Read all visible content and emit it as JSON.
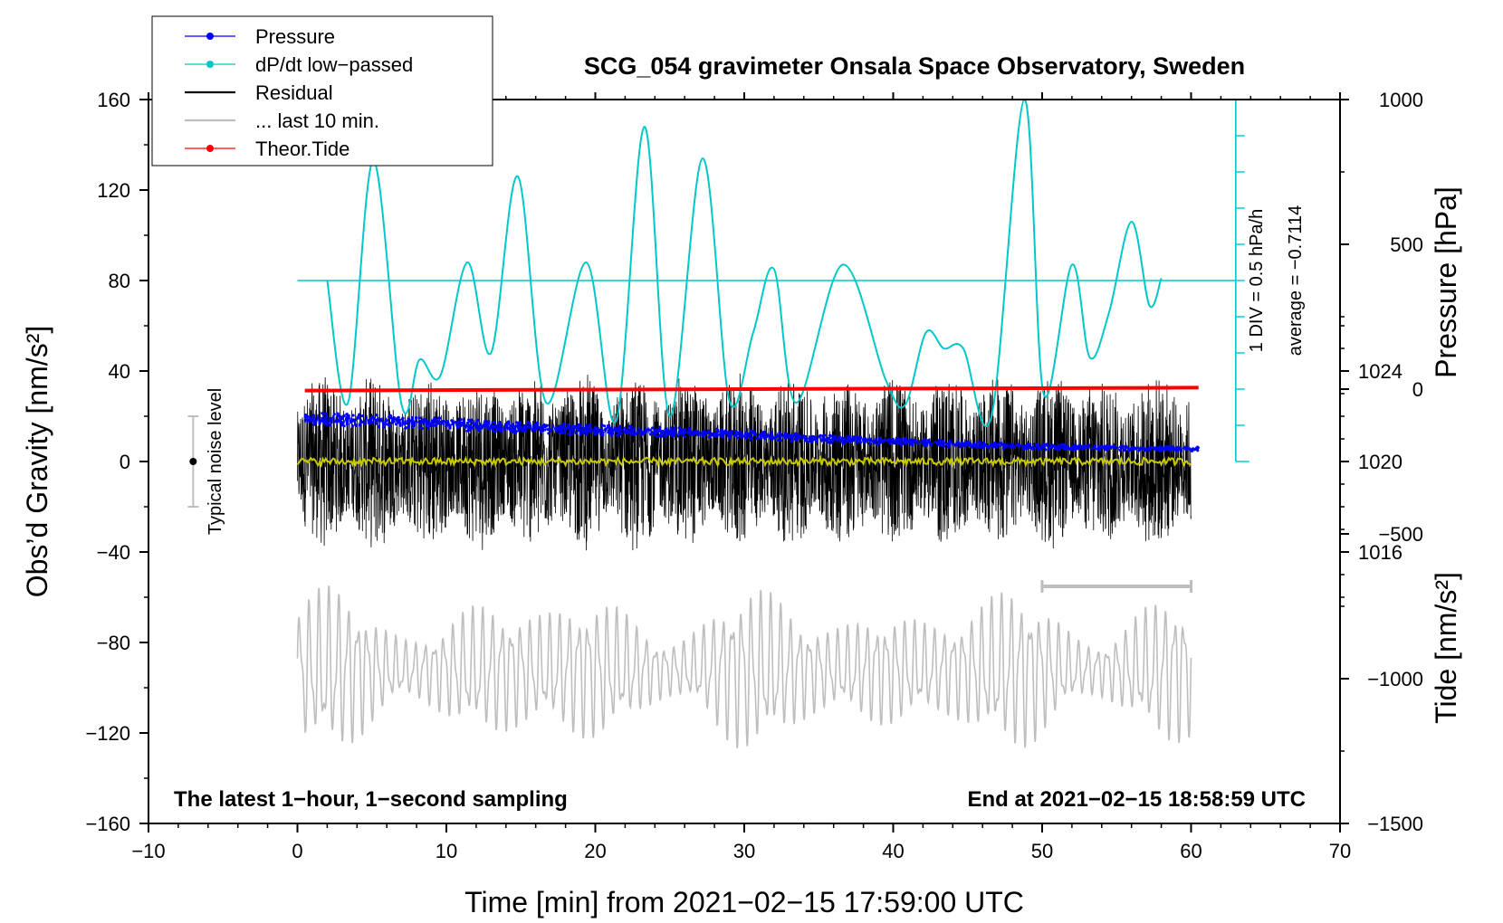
{
  "chart_data": {
    "type": "line",
    "title": "SCG_054 gravimeter Onsala Space Observatory, Sweden",
    "xlabel": "Time [min] from 2021−02−15 17:59:00 UTC",
    "ylabel_left": "Obs’d Gravity [nm/s²]",
    "ylabel_right_top": "Pressure [hPa]",
    "ylabel_right_bottom": "Tide [nm/s²]",
    "xlim": [
      -10,
      70
    ],
    "ylim": [
      -160,
      160
    ],
    "pressure_ylim": [
      1004,
      1036
    ],
    "tide_ylim": [
      -1500,
      1000
    ],
    "xticks": [
      -10,
      0,
      10,
      20,
      30,
      40,
      50,
      60,
      70
    ],
    "xtick_labels": [
      "−10",
      "0",
      "10",
      "20",
      "30",
      "40",
      "50",
      "60",
      "70"
    ],
    "yticks": [
      -160,
      -120,
      -80,
      -40,
      0,
      40,
      80,
      120,
      160
    ],
    "ytick_labels": [
      "−160",
      "−120",
      "−80",
      "−40",
      "0",
      "40",
      "80",
      "120",
      "160"
    ],
    "pressure_ticks": [
      1016,
      1020,
      1024
    ],
    "pressure_tick_labels": [
      "1016",
      "1020",
      "1024"
    ],
    "tide_ticks": [
      -1500,
      -1000,
      -500,
      0,
      500,
      1000
    ],
    "tide_tick_labels": [
      "−1500",
      "−1000",
      "−500",
      "0",
      "500",
      "1000"
    ],
    "legend": [
      {
        "label": "Pressure",
        "color": "#0000ff",
        "style": "line-dot"
      },
      {
        "label": "dP/dt low−passed",
        "color": "#00c8c8",
        "style": "line-dot"
      },
      {
        "label": "Residual",
        "color": "#000000",
        "style": "line"
      },
      {
        "label": "... last 10 min.",
        "color": "#bebebe",
        "style": "line"
      },
      {
        "label": "Theor.Tide",
        "color": "#ff0000",
        "style": "line-dot"
      }
    ],
    "corner_left": "The latest 1−hour, 1−second sampling",
    "corner_right": "End at 2021−02−15 18:58:59 UTC",
    "noise_label": "Typical noise level",
    "noise_level": 20,
    "noise_x": -7,
    "dpdt_scale_label": "1 DIV = 0.5 hPa/h",
    "dpdt_average_label": "average = −0.7114",
    "dpdt_baseline": 80,
    "dpdt_scale_x": 63,
    "dpdt_scale_range": [
      0,
      160
    ],
    "last10_window": [
      50,
      60
    ],
    "pressure_series": {
      "name": "Pressure",
      "x": [
        0.5,
        5,
        10,
        15,
        20,
        25,
        30,
        35,
        40,
        45,
        50,
        55,
        60.5
      ],
      "values": [
        1021.9,
        1021.8,
        1021.65,
        1021.5,
        1021.4,
        1021.3,
        1021.2,
        1021.0,
        1020.9,
        1020.75,
        1020.65,
        1020.6,
        1020.55
      ]
    },
    "dpdt_series": {
      "name": "dP/dt low−passed",
      "x": [
        2,
        3.4,
        5.1,
        7,
        8.2,
        9.6,
        11.4,
        13,
        14.8,
        16.7,
        19.4,
        21.4,
        23.3,
        25,
        27.2,
        29,
        30.6,
        32,
        33.5,
        36.6,
        39.5,
        40.8,
        42.2,
        43.4,
        44.7,
        46.6,
        48.8,
        50.1,
        52,
        53.2,
        54.5,
        56,
        57.2,
        58
      ],
      "values": [
        80,
        26,
        133,
        25,
        45,
        38,
        88,
        48,
        126,
        26,
        88,
        18,
        148,
        20,
        134,
        27,
        57,
        85,
        26,
        87,
        36,
        25,
        57,
        50,
        50,
        20,
        160,
        30,
        87,
        46,
        66,
        106,
        69,
        81
      ]
    },
    "residual_series": {
      "name": "Residual",
      "x_range": [
        0,
        60
      ],
      "amplitude_range": [
        -40,
        45
      ]
    },
    "residual_smooth": {
      "name": "Residual (smoothed)",
      "color": "#c8c800",
      "value": 0
    },
    "last10_series": {
      "name": "... last 10 min.",
      "x_range": [
        0,
        60
      ],
      "center": -92,
      "amplitude": 38
    },
    "tide_series": {
      "name": "Theor.Tide",
      "x": [
        0.5,
        60.5
      ],
      "values": [
        -5,
        5
      ]
    }
  }
}
